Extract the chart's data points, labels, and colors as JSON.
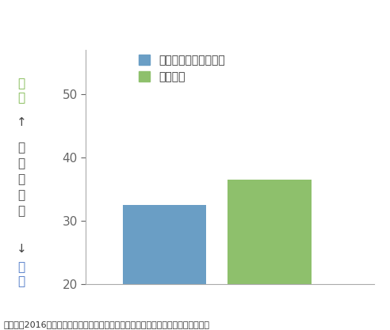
{
  "bars": [
    {
      "label": "内観的認知行動療法前",
      "value": 32.5,
      "color": "#6a9ec5"
    },
    {
      "label": "６か月後",
      "value": 36.5,
      "color": "#8ec06c"
    }
  ],
  "ylim": [
    20,
    57
  ],
  "yticks": [
    20,
    30,
    40,
    50
  ],
  "ylabel_top_text": "高\nい",
  "ylabel_top_color": "#7ab648",
  "ylabel_arrow_up": "↑",
  "ylabel_mid_text": "心\nの\n健\n康\n度",
  "ylabel_mid_color": "#444444",
  "ylabel_arrow_down": "↓",
  "ylabel_bot_text": "低\nい",
  "ylabel_bot_color": "#4472c4",
  "caption": "渡辺ら（2016）デイケアプログラムにおける内観的認知療法より一部改変して図示",
  "caption_fontsize": 8,
  "legend_fontsize": 10,
  "tick_fontsize": 11,
  "fig_width": 4.92,
  "fig_height": 4.17,
  "dpi": 100
}
